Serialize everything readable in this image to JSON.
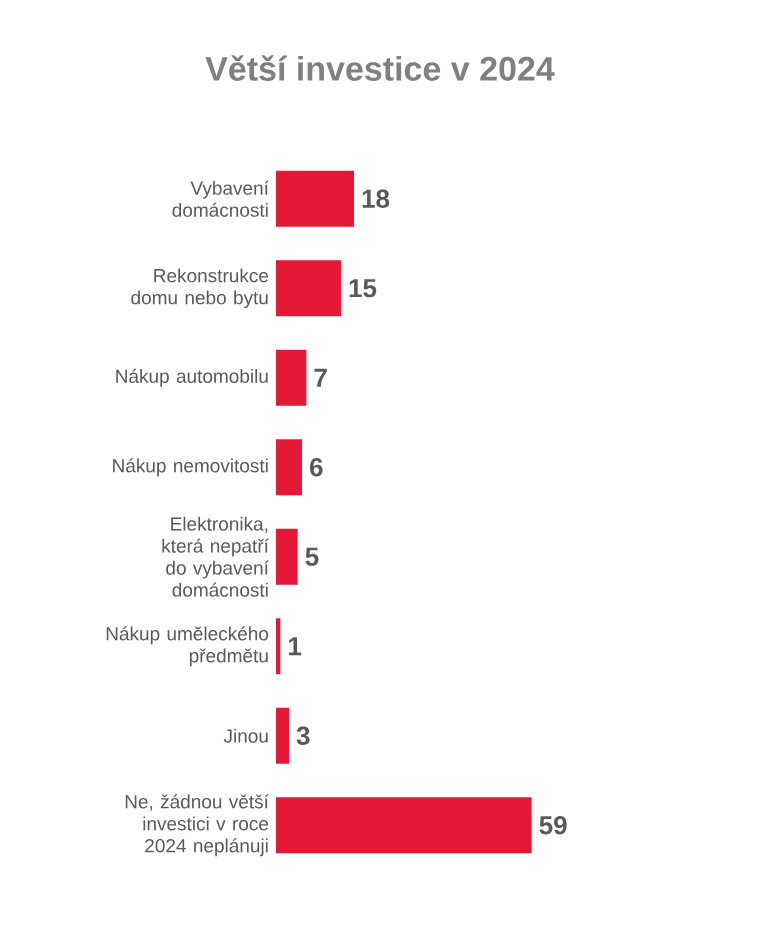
{
  "chart_data": {
    "type": "bar",
    "orientation": "horizontal",
    "title": "Větší investice v 2024",
    "categories": [
      "Vybavení domácnosti",
      "Rekonstrukce domu nebo bytu",
      "Nákup automobilu",
      "Nákup nemovitosti",
      "Elektronika, která nepatří do vybavení domácnosti",
      "Nákup uměleckého předmětu",
      "Jinou",
      "Ne, žádnou větší investici v roce 2024 neplánuji"
    ],
    "values": [
      18,
      15,
      7,
      6,
      5,
      1,
      3,
      59
    ],
    "color": "#e31937",
    "data_labels": true
  }
}
